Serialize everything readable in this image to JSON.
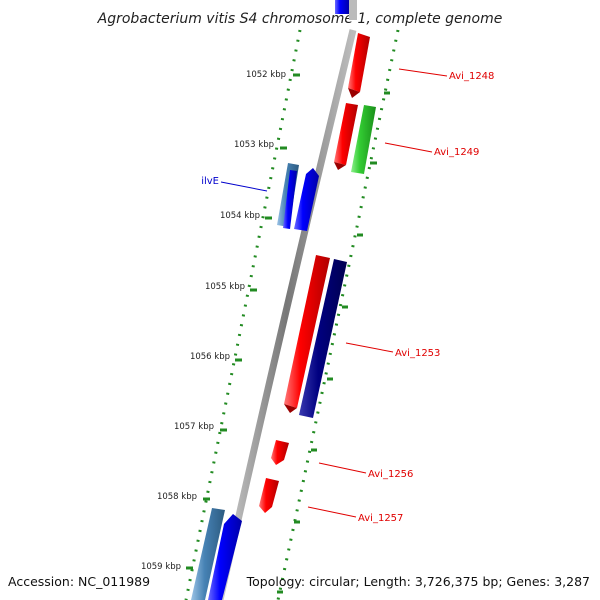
{
  "title": "Agrobacterium vitis S4 chromosome 1, complete genome",
  "footer": {
    "accession": "Accession: NC_011989",
    "summary": "Topology: circular; Length: 3,726,375 bp; Genes: 3,287"
  },
  "ticks": [
    {
      "label": "1052 kbp"
    },
    {
      "label": "1053 kbp"
    },
    {
      "label": "1054 kbp"
    },
    {
      "label": "1055 kbp"
    },
    {
      "label": "1056 kbp"
    },
    {
      "label": "1057 kbp"
    },
    {
      "label": "1058 kbp"
    },
    {
      "label": "1059 kbp"
    }
  ],
  "gene_labels": [
    {
      "text": "Avi_1248",
      "color": "#e00000"
    },
    {
      "text": "Avi_1249",
      "color": "#e00000"
    },
    {
      "text": "ilvE",
      "color": "#0000cc"
    },
    {
      "text": "Avi_1253",
      "color": "#e00000"
    },
    {
      "text": "Avi_1256",
      "color": "#e00000"
    },
    {
      "text": "Avi_1257",
      "color": "#e00000"
    }
  ],
  "colors": {
    "red_gene": "#ee0000",
    "green_gene": "#22cc22",
    "blue_gene": "#0000ee",
    "steelblue_gene": "#4682b4",
    "navy_gene": "#00007a",
    "backbone": "#888888",
    "tick_green": "#228b22",
    "label_line_red": "#e00000",
    "label_line_blue": "#0000cc"
  }
}
